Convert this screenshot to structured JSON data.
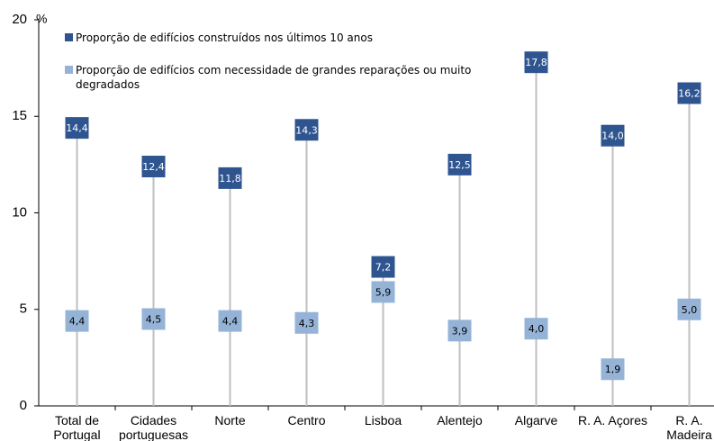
{
  "chart_data": {
    "type": "dot",
    "unit": "%",
    "categories": [
      "Total de Portugal",
      "Cidades portuguesas",
      "Norte",
      "Centro",
      "Lisboa",
      "Alentejo",
      "Algarve",
      "R. A. Açores",
      "R. A. Madeira"
    ],
    "series": [
      {
        "name": "Proporção de edifícios construídos nos últimos 10 anos",
        "color": "#2f5590",
        "label_color": "#ffffff",
        "values": [
          14.4,
          12.4,
          11.8,
          14.3,
          7.2,
          12.5,
          17.8,
          14.0,
          16.2
        ],
        "value_labels": [
          "14,4",
          "12,4",
          "11,8",
          "14,3",
          "7,2",
          "12,5",
          "17,8",
          "14,0",
          "16,2"
        ]
      },
      {
        "name": "Proporção de edifícios com necessidade de grandes reparações ou muito degradados",
        "color": "#95b3d7",
        "label_color": "#000000",
        "values": [
          4.4,
          4.5,
          4.4,
          4.3,
          5.9,
          3.9,
          4.0,
          1.9,
          5.0
        ],
        "value_labels": [
          "4,4",
          "4,5",
          "4,4",
          "4,3",
          "5,9",
          "3,9",
          "4,0",
          "1,9",
          "5,0"
        ]
      }
    ],
    "ylim": [
      0,
      20
    ],
    "yticks": [
      0,
      5,
      10,
      15,
      20
    ],
    "grid": false
  }
}
